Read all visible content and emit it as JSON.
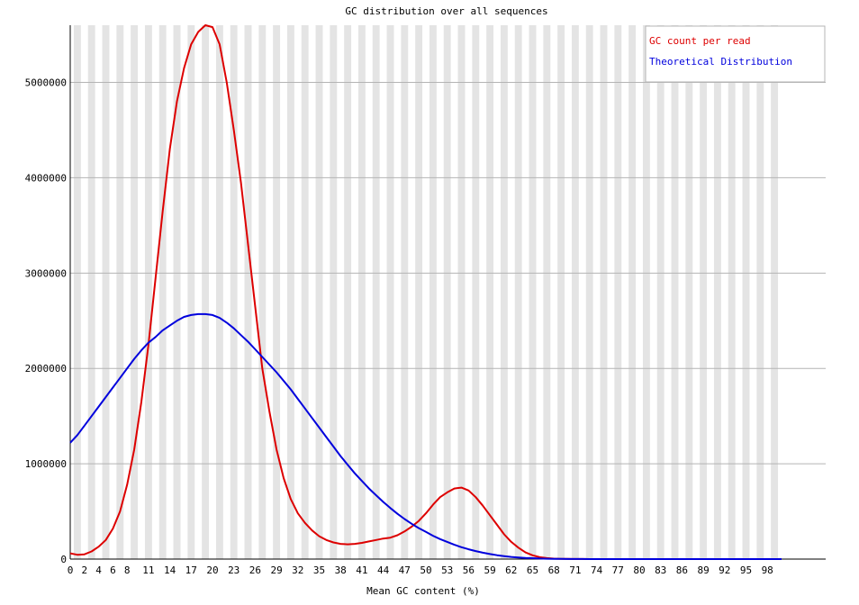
{
  "chart_data": {
    "type": "line",
    "title": "GC distribution over all sequences",
    "xlabel": "Mean GC content (%)",
    "ylabel": "",
    "ylim": [
      0,
      5600000
    ],
    "xlim": [
      0,
      100
    ],
    "y_ticks": [
      "0",
      "1000000",
      "2000000",
      "3000000",
      "4000000",
      "5000000"
    ],
    "y_tick_values": [
      0,
      1000000,
      2000000,
      3000000,
      4000000,
      5000000
    ],
    "x_tick_labels": [
      "0",
      "2",
      "4",
      "6",
      "8",
      "11",
      "14",
      "17",
      "20",
      "23",
      "26",
      "29",
      "32",
      "35",
      "38",
      "41",
      "44",
      "47",
      "50",
      "53",
      "56",
      "59",
      "62",
      "65",
      "68",
      "71",
      "74",
      "77",
      "80",
      "83",
      "86",
      "89",
      "92",
      "95",
      "98"
    ],
    "x_tick_values": [
      0,
      2,
      4,
      6,
      8,
      11,
      14,
      17,
      20,
      23,
      26,
      29,
      32,
      35,
      38,
      41,
      44,
      47,
      50,
      53,
      56,
      59,
      62,
      65,
      68,
      71,
      74,
      77,
      80,
      83,
      86,
      89,
      92,
      95,
      98
    ],
    "grid": true,
    "legend_position": "top-right",
    "colors": {
      "gc_count": "#dd0000",
      "theoretical": "#0000dd",
      "band": "#e4e4e4",
      "grid": "#b4b4b4"
    },
    "series": [
      {
        "name": "GC count per read",
        "color": "#dd0000",
        "x": [
          0,
          1,
          2,
          3,
          4,
          5,
          6,
          7,
          8,
          9,
          10,
          11,
          12,
          13,
          14,
          15,
          16,
          17,
          18,
          19,
          20,
          21,
          22,
          23,
          24,
          25,
          26,
          27,
          28,
          29,
          30,
          31,
          32,
          33,
          34,
          35,
          36,
          37,
          38,
          39,
          40,
          41,
          42,
          43,
          44,
          45,
          46,
          47,
          48,
          49,
          50,
          51,
          52,
          53,
          54,
          55,
          56,
          57,
          58,
          59,
          60,
          61,
          62,
          63,
          64,
          65,
          66,
          67,
          68,
          69,
          70,
          71,
          72,
          73,
          74,
          75,
          76,
          77,
          78,
          79,
          80,
          81,
          82,
          83,
          84,
          85,
          86,
          87,
          88,
          89,
          90,
          91,
          92,
          93,
          94,
          95,
          96,
          97,
          98,
          99,
          100
        ],
        "values": [
          60000,
          45000,
          50000,
          80000,
          130000,
          200000,
          320000,
          500000,
          780000,
          1150000,
          1650000,
          2250000,
          2950000,
          3650000,
          4300000,
          4800000,
          5150000,
          5400000,
          5530000,
          5600000,
          5580000,
          5400000,
          5000000,
          4500000,
          3950000,
          3300000,
          2650000,
          2000000,
          1550000,
          1150000,
          850000,
          630000,
          480000,
          380000,
          300000,
          240000,
          200000,
          175000,
          160000,
          155000,
          160000,
          170000,
          185000,
          200000,
          215000,
          225000,
          250000,
          290000,
          340000,
          400000,
          480000,
          570000,
          650000,
          700000,
          740000,
          750000,
          720000,
          650000,
          560000,
          460000,
          360000,
          260000,
          180000,
          120000,
          70000,
          40000,
          20000,
          10000,
          5000,
          3000,
          2000,
          1000,
          500,
          300,
          200,
          100,
          100,
          100,
          100,
          100,
          100,
          100,
          100,
          100,
          100,
          100,
          100,
          100,
          100,
          100,
          100,
          100,
          100,
          100,
          100,
          100,
          100,
          100,
          100,
          100,
          100
        ]
      },
      {
        "name": "Theoretical Distribution",
        "color": "#0000dd",
        "x": [
          0,
          1,
          2,
          3,
          4,
          5,
          6,
          7,
          8,
          9,
          10,
          11,
          12,
          13,
          14,
          15,
          16,
          17,
          18,
          19,
          20,
          21,
          22,
          23,
          24,
          25,
          26,
          27,
          28,
          29,
          30,
          31,
          32,
          33,
          34,
          35,
          36,
          37,
          38,
          39,
          40,
          41,
          42,
          43,
          44,
          45,
          46,
          47,
          48,
          49,
          50,
          51,
          52,
          53,
          54,
          55,
          56,
          57,
          58,
          59,
          60,
          61,
          62,
          63,
          64,
          65,
          66,
          67,
          68,
          69,
          70,
          71,
          72,
          73,
          74,
          75,
          76,
          77,
          78,
          79,
          80,
          81,
          82,
          83,
          84,
          85,
          86,
          87,
          88,
          89,
          90,
          91,
          92,
          93,
          94,
          95,
          96,
          97,
          98,
          99,
          100
        ],
        "values": [
          1220000,
          1300000,
          1400000,
          1500000,
          1600000,
          1700000,
          1800000,
          1900000,
          2000000,
          2100000,
          2190000,
          2270000,
          2330000,
          2400000,
          2450000,
          2500000,
          2540000,
          2560000,
          2570000,
          2570000,
          2560000,
          2530000,
          2480000,
          2420000,
          2350000,
          2280000,
          2200000,
          2120000,
          2040000,
          1960000,
          1870000,
          1780000,
          1680000,
          1580000,
          1480000,
          1380000,
          1280000,
          1180000,
          1080000,
          990000,
          900000,
          820000,
          740000,
          670000,
          600000,
          535000,
          475000,
          420000,
          370000,
          325000,
          285000,
          245000,
          210000,
          180000,
          150000,
          125000,
          103000,
          84000,
          67000,
          53000,
          41000,
          31000,
          23000,
          17000,
          12000,
          9000,
          6000,
          4000,
          3000,
          2000,
          1000,
          800,
          600,
          400,
          300,
          200,
          100,
          100,
          100,
          100,
          100,
          100,
          100,
          100,
          100,
          100,
          100,
          100,
          100,
          100,
          100,
          100,
          100,
          100,
          100,
          100,
          100,
          100,
          100,
          100,
          100
        ]
      }
    ]
  }
}
